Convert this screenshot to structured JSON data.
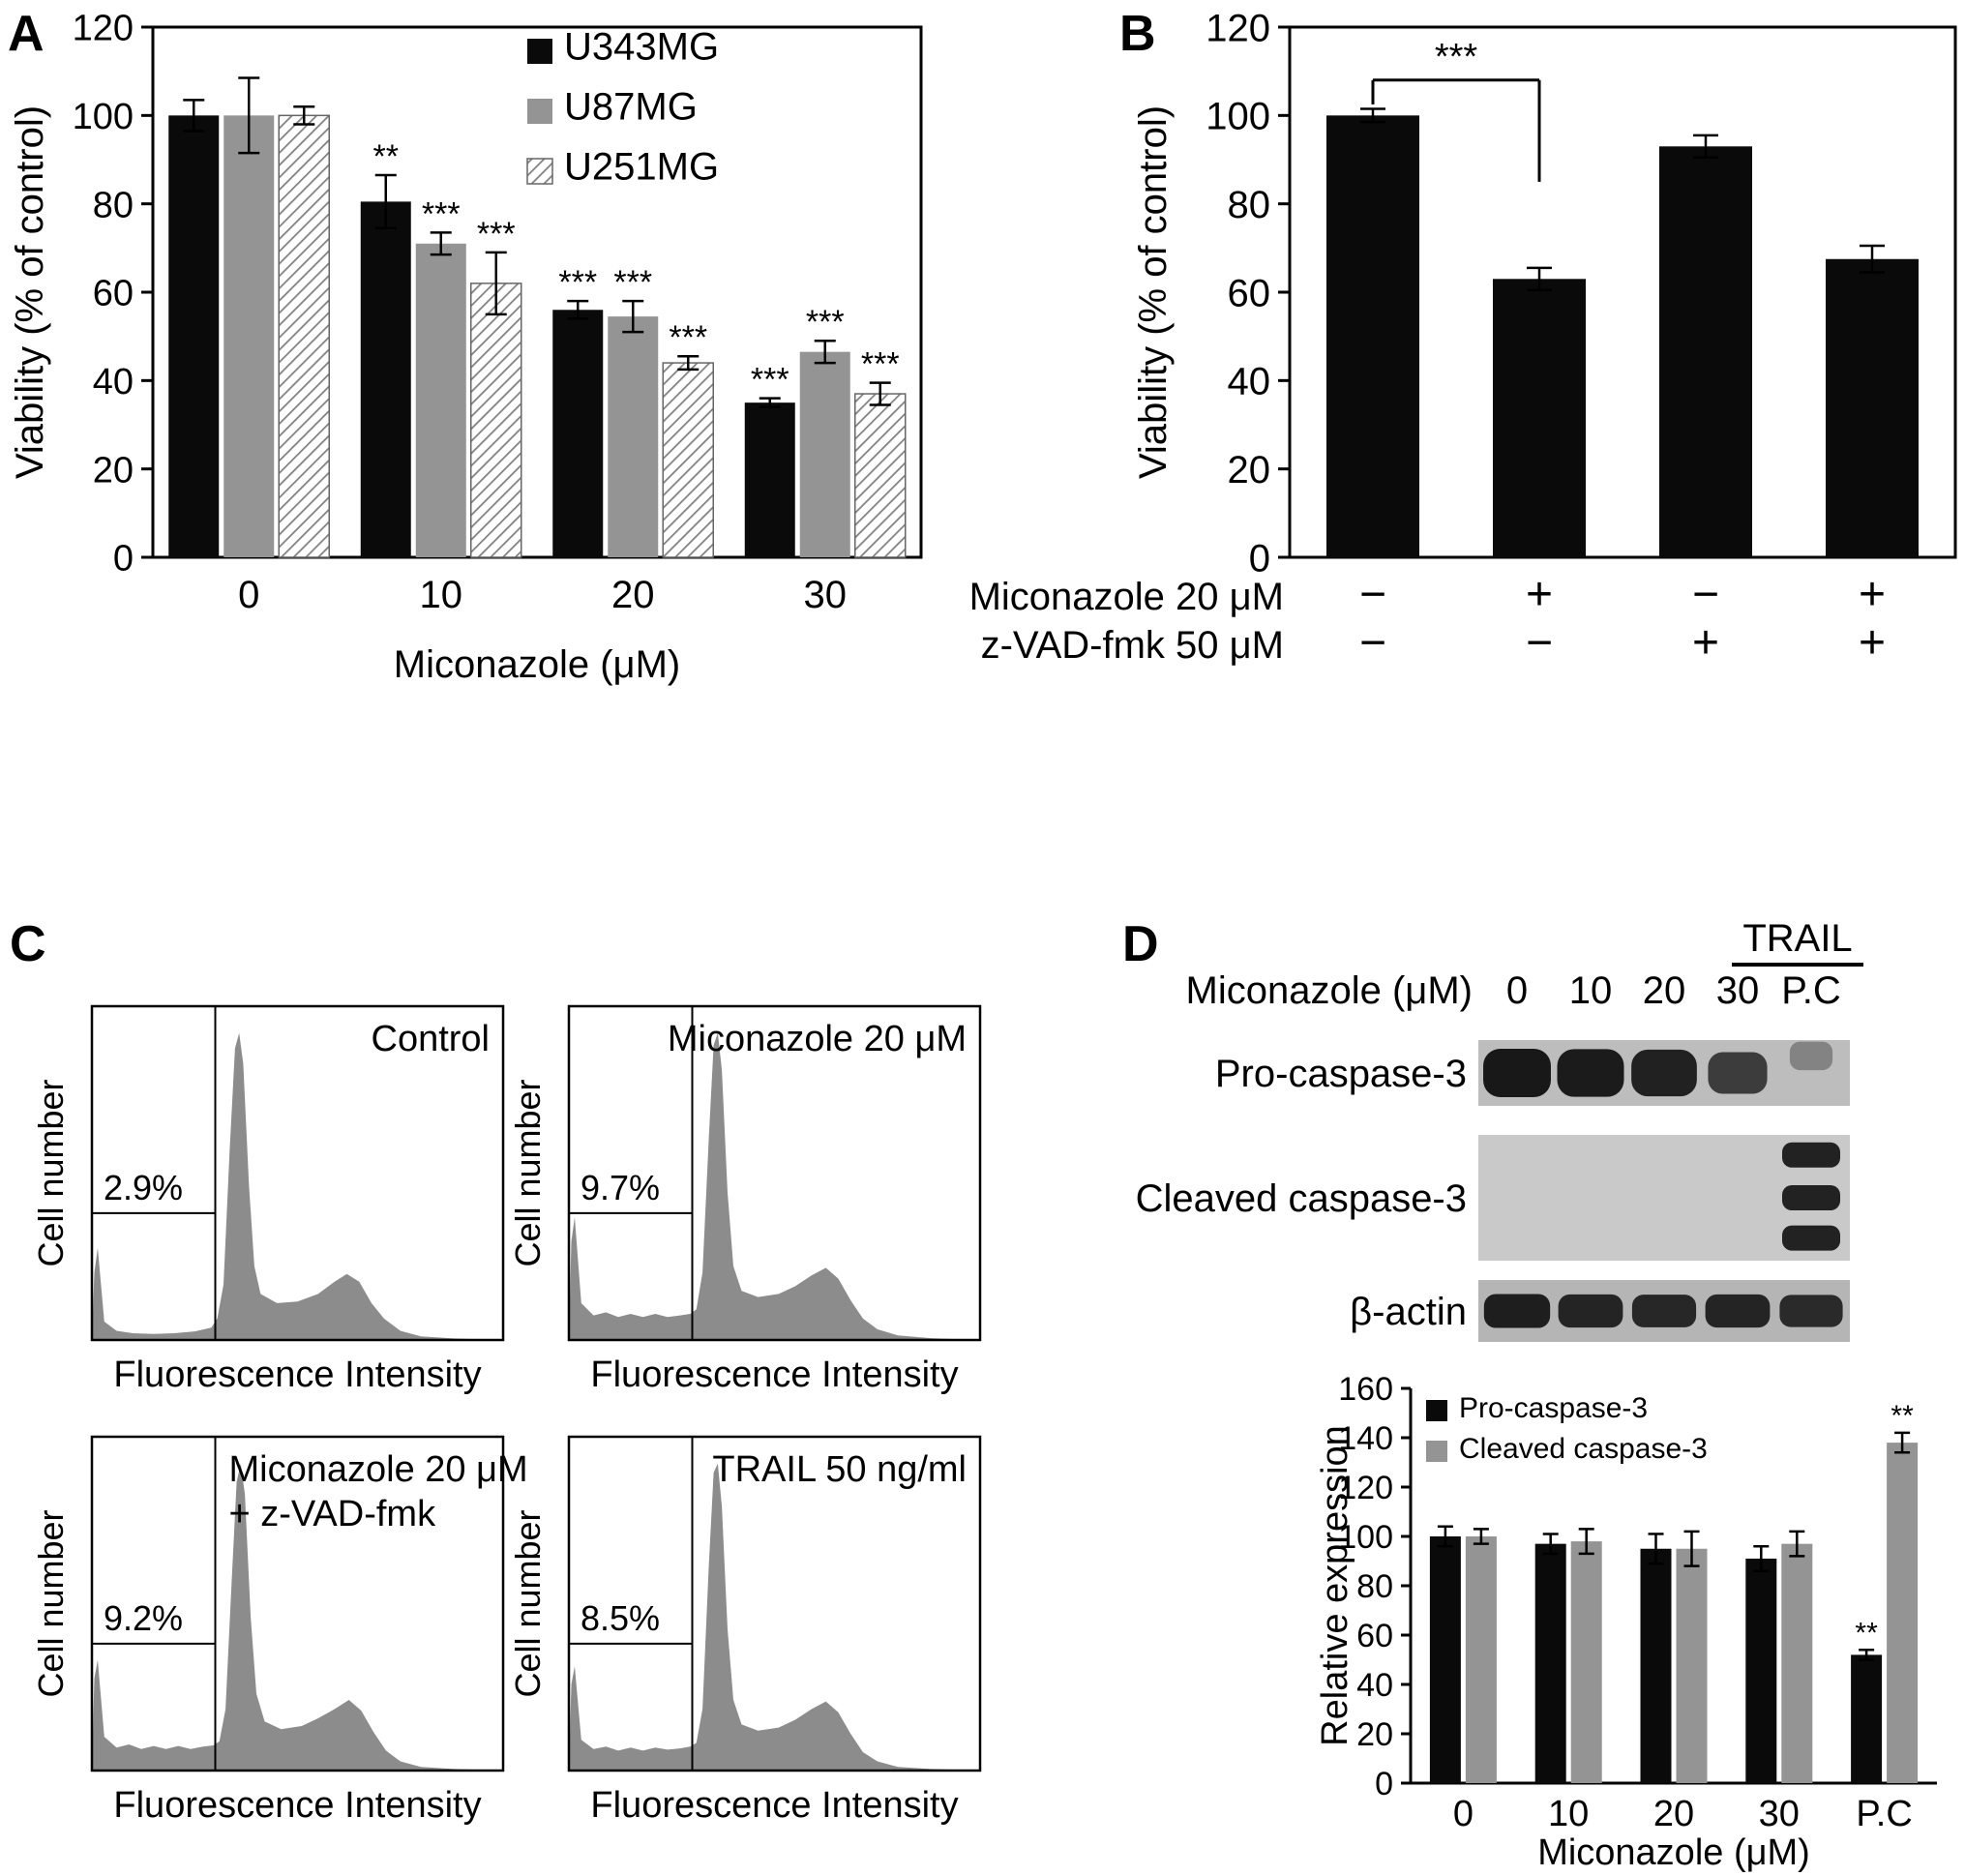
{
  "figure": {
    "background": "#ffffff",
    "panel_labels": {
      "a": "A",
      "b": "B",
      "c": "C",
      "d": "D"
    }
  },
  "colors": {
    "black_bar": "#0a0a0a",
    "gray_bar": "#949494",
    "hatch_line": "#808080",
    "histogram_fill": "#8c8c8c",
    "band": "#141414"
  },
  "chart_data": [
    {
      "id": "A",
      "type": "bar",
      "panel_label": "A",
      "xlabel": "Miconazole (μM)",
      "ylabel": "Viability (% of control)",
      "ylim": [
        0,
        120
      ],
      "ytick_step": 20,
      "categories": [
        "0",
        "10",
        "20",
        "30"
      ],
      "series": [
        {
          "name": "U343MG",
          "style": "black",
          "values": [
            100,
            80.5,
            56,
            35
          ],
          "errors": [
            3.5,
            6,
            2,
            1
          ],
          "sig": [
            "",
            "**",
            "***",
            "***"
          ]
        },
        {
          "name": "U87MG",
          "style": "gray",
          "values": [
            100,
            71,
            54.5,
            46.5
          ],
          "errors": [
            8.5,
            2.5,
            3.5,
            2.5
          ],
          "sig": [
            "",
            "***",
            "***",
            "***"
          ]
        },
        {
          "name": "U251MG",
          "style": "hatch",
          "values": [
            100,
            62,
            44,
            37
          ],
          "errors": [
            2,
            7,
            1.5,
            2.5
          ],
          "sig": [
            "",
            "***",
            "***",
            "***"
          ]
        }
      ],
      "legend_position": "top-right"
    },
    {
      "id": "B",
      "type": "bar",
      "panel_label": "B",
      "xlabel": "",
      "ylabel": "Viability (% of control)",
      "ylim": [
        0,
        120
      ],
      "ytick_step": 20,
      "categories": [
        "",
        "",
        "",
        ""
      ],
      "series": [
        {
          "name": "",
          "style": "black",
          "values": [
            100,
            63,
            93,
            67.5
          ],
          "errors": [
            1.5,
            2.5,
            2.5,
            3
          ],
          "sig": [
            "",
            "",
            "",
            ""
          ]
        }
      ],
      "bracket": {
        "from": 0,
        "to": 1,
        "label": "***",
        "y": 108,
        "left_end": 102.5,
        "right_end": 85
      },
      "condition_rows": [
        {
          "label": "Miconazole 20 μM",
          "values": [
            "−",
            "+",
            "−",
            "+"
          ]
        },
        {
          "label": "z-VAD-fmk 50 μM",
          "values": [
            "−",
            "−",
            "+",
            "+"
          ]
        }
      ]
    },
    {
      "id": "C",
      "type": "histogram-grid",
      "panel_label": "C",
      "xlabel": "Fluorescence Intensity",
      "ylabel": "Cell number",
      "panels": [
        {
          "title_lines": [
            "Control"
          ],
          "title_anchor": "end",
          "gate_percent": "2.9%",
          "profile": [
            [
              0,
              0
            ],
            [
              0.006,
              0.22
            ],
            [
              0.014,
              0.3
            ],
            [
              0.03,
              0.06
            ],
            [
              0.06,
              0.03
            ],
            [
              0.1,
              0.022
            ],
            [
              0.15,
              0.02
            ],
            [
              0.2,
              0.022
            ],
            [
              0.25,
              0.028
            ],
            [
              0.29,
              0.04
            ],
            [
              0.305,
              0.07
            ],
            [
              0.32,
              0.18
            ],
            [
              0.335,
              0.62
            ],
            [
              0.348,
              0.95
            ],
            [
              0.358,
              1
            ],
            [
              0.368,
              0.9
            ],
            [
              0.382,
              0.5
            ],
            [
              0.395,
              0.24
            ],
            [
              0.41,
              0.15
            ],
            [
              0.45,
              0.12
            ],
            [
              0.5,
              0.125
            ],
            [
              0.55,
              0.15
            ],
            [
              0.59,
              0.19
            ],
            [
              0.62,
              0.215
            ],
            [
              0.65,
              0.19
            ],
            [
              0.68,
              0.12
            ],
            [
              0.71,
              0.07
            ],
            [
              0.75,
              0.03
            ],
            [
              0.8,
              0.012
            ],
            [
              0.88,
              0.005
            ],
            [
              1,
              0
            ]
          ]
        },
        {
          "title_lines": [
            "Miconazole 20 μM"
          ],
          "title_anchor": "end",
          "gate_percent": "9.7%",
          "profile": [
            [
              0,
              0
            ],
            [
              0.006,
              0.32
            ],
            [
              0.014,
              0.4
            ],
            [
              0.03,
              0.12
            ],
            [
              0.06,
              0.08
            ],
            [
              0.09,
              0.09
            ],
            [
              0.12,
              0.075
            ],
            [
              0.15,
              0.085
            ],
            [
              0.18,
              0.075
            ],
            [
              0.21,
              0.085
            ],
            [
              0.24,
              0.075
            ],
            [
              0.27,
              0.08
            ],
            [
              0.295,
              0.085
            ],
            [
              0.31,
              0.1
            ],
            [
              0.325,
              0.22
            ],
            [
              0.34,
              0.65
            ],
            [
              0.352,
              0.96
            ],
            [
              0.362,
              1
            ],
            [
              0.372,
              0.88
            ],
            [
              0.386,
              0.48
            ],
            [
              0.4,
              0.24
            ],
            [
              0.42,
              0.16
            ],
            [
              0.46,
              0.14
            ],
            [
              0.51,
              0.15
            ],
            [
              0.55,
              0.175
            ],
            [
              0.59,
              0.21
            ],
            [
              0.625,
              0.235
            ],
            [
              0.655,
              0.2
            ],
            [
              0.685,
              0.13
            ],
            [
              0.715,
              0.07
            ],
            [
              0.75,
              0.035
            ],
            [
              0.8,
              0.015
            ],
            [
              0.88,
              0.006
            ],
            [
              1,
              0
            ]
          ]
        },
        {
          "title_lines": [
            "Miconazole 20 μM",
            "+ z-VAD-fmk"
          ],
          "title_anchor": "start",
          "gate_percent": "9.2%",
          "profile": [
            [
              0,
              0
            ],
            [
              0.006,
              0.3
            ],
            [
              0.014,
              0.36
            ],
            [
              0.03,
              0.11
            ],
            [
              0.06,
              0.075
            ],
            [
              0.09,
              0.085
            ],
            [
              0.12,
              0.07
            ],
            [
              0.15,
              0.08
            ],
            [
              0.18,
              0.07
            ],
            [
              0.21,
              0.08
            ],
            [
              0.24,
              0.07
            ],
            [
              0.27,
              0.078
            ],
            [
              0.295,
              0.082
            ],
            [
              0.31,
              0.095
            ],
            [
              0.325,
              0.2
            ],
            [
              0.34,
              0.62
            ],
            [
              0.352,
              0.94
            ],
            [
              0.362,
              1
            ],
            [
              0.372,
              0.9
            ],
            [
              0.386,
              0.5
            ],
            [
              0.4,
              0.25
            ],
            [
              0.42,
              0.16
            ],
            [
              0.46,
              0.135
            ],
            [
              0.51,
              0.145
            ],
            [
              0.55,
              0.17
            ],
            [
              0.59,
              0.2
            ],
            [
              0.625,
              0.23
            ],
            [
              0.655,
              0.195
            ],
            [
              0.685,
              0.125
            ],
            [
              0.715,
              0.065
            ],
            [
              0.75,
              0.03
            ],
            [
              0.8,
              0.012
            ],
            [
              0.88,
              0.005
            ],
            [
              1,
              0
            ]
          ]
        },
        {
          "title_lines": [
            "TRAIL 50 ng/ml"
          ],
          "title_anchor": "end",
          "gate_percent": "8.5%",
          "profile": [
            [
              0,
              0
            ],
            [
              0.006,
              0.28
            ],
            [
              0.014,
              0.34
            ],
            [
              0.03,
              0.1
            ],
            [
              0.06,
              0.07
            ],
            [
              0.09,
              0.078
            ],
            [
              0.12,
              0.065
            ],
            [
              0.15,
              0.075
            ],
            [
              0.18,
              0.065
            ],
            [
              0.21,
              0.075
            ],
            [
              0.24,
              0.068
            ],
            [
              0.27,
              0.072
            ],
            [
              0.295,
              0.078
            ],
            [
              0.31,
              0.09
            ],
            [
              0.325,
              0.2
            ],
            [
              0.34,
              0.66
            ],
            [
              0.352,
              0.97
            ],
            [
              0.362,
              1
            ],
            [
              0.372,
              0.86
            ],
            [
              0.386,
              0.46
            ],
            [
              0.4,
              0.23
            ],
            [
              0.42,
              0.15
            ],
            [
              0.46,
              0.13
            ],
            [
              0.51,
              0.14
            ],
            [
              0.55,
              0.165
            ],
            [
              0.59,
              0.2
            ],
            [
              0.625,
              0.225
            ],
            [
              0.655,
              0.19
            ],
            [
              0.685,
              0.12
            ],
            [
              0.715,
              0.06
            ],
            [
              0.75,
              0.03
            ],
            [
              0.8,
              0.012
            ],
            [
              0.88,
              0.005
            ],
            [
              1,
              0
            ]
          ]
        }
      ]
    },
    {
      "id": "D-blot",
      "type": "western-blot",
      "panel_label": "D",
      "header_label": "Miconazole (μM)",
      "lanes": [
        "0",
        "10",
        "20",
        "30",
        "P.C"
      ],
      "trail_label": "TRAIL",
      "rows": [
        {
          "label": "Pro-caspase-3",
          "bands": [
            1,
            0.97,
            0.93,
            0.72,
            0.18
          ],
          "y_offsets": [
            0,
            0,
            0,
            0,
            -0.26
          ]
        },
        {
          "label": "Cleaved caspase-3",
          "bands": [
            0,
            0,
            0,
            0,
            1
          ],
          "pc_multiband": true
        },
        {
          "label": "β-actin",
          "bands": [
            0.95,
            0.9,
            0.88,
            0.9,
            0.85
          ]
        }
      ]
    },
    {
      "id": "D-bar",
      "type": "bar",
      "xlabel": "Miconazole (μM)",
      "ylabel": "Relative expression",
      "ylim": [
        0,
        160
      ],
      "ytick_step": 20,
      "categories": [
        "0",
        "10",
        "20",
        "30",
        "P.C"
      ],
      "series": [
        {
          "name": "Pro-caspase-3",
          "style": "black",
          "values": [
            100,
            97,
            95,
            91,
            52
          ],
          "errors": [
            4,
            4,
            6,
            5,
            2
          ],
          "sig": [
            "",
            "",
            "",
            "",
            "**"
          ]
        },
        {
          "name": "Cleaved caspase-3",
          "style": "gray",
          "values": [
            100,
            98,
            95,
            97,
            138
          ],
          "errors": [
            3,
            5,
            7,
            5,
            4
          ],
          "sig": [
            "",
            "",
            "",
            "",
            "**"
          ]
        }
      ],
      "legend_position": "top-left"
    }
  ]
}
